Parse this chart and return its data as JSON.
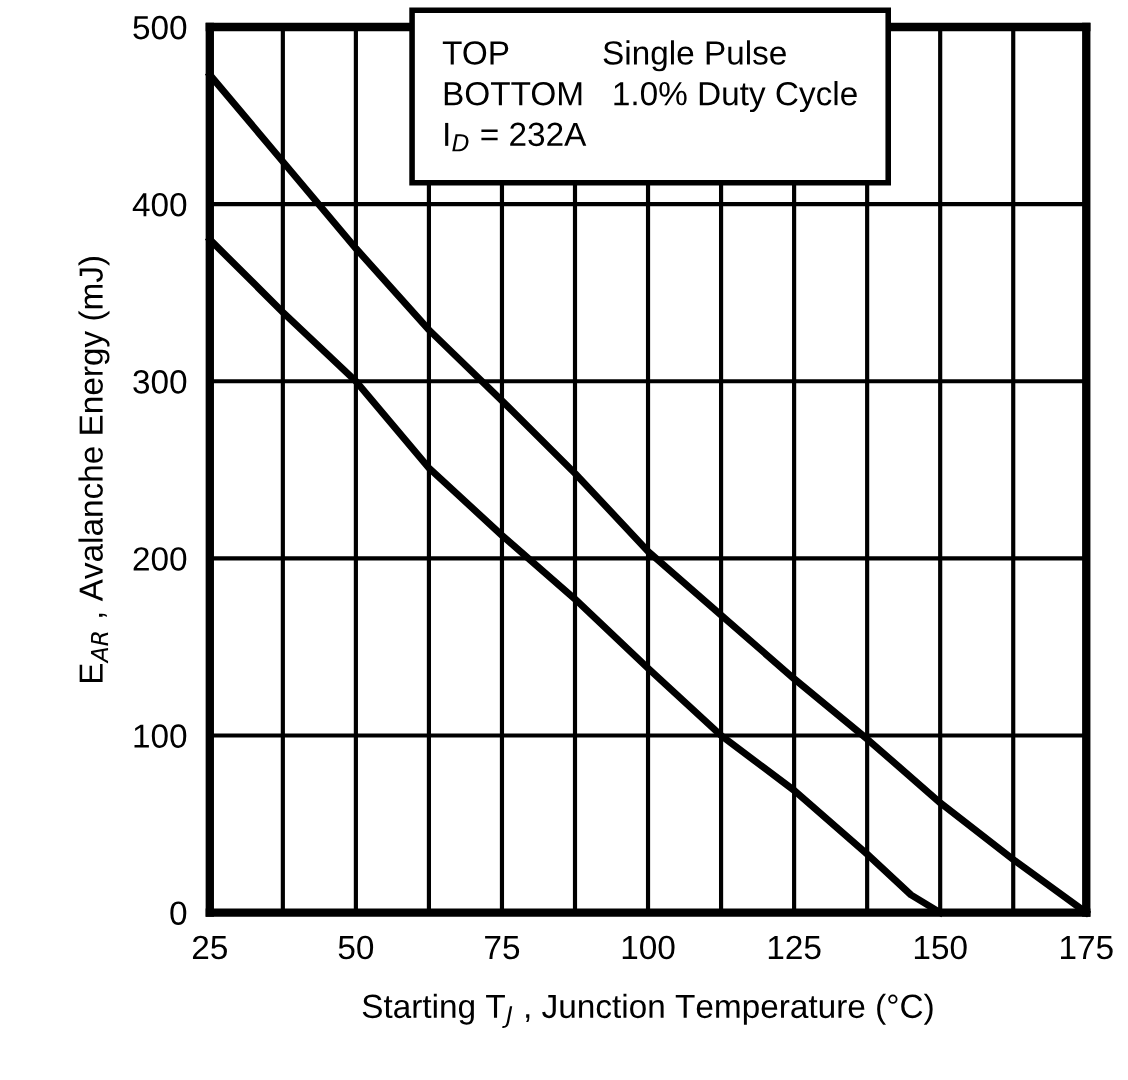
{
  "chart_data": {
    "type": "line",
    "xlabel": "Starting T$_{J}$ , Junction Temperature (°C)",
    "ylabel": "E$_{AR}$ , Avalanche Energy (mJ)",
    "x": [
      25,
      37.5,
      50,
      62.5,
      75,
      87.5,
      100,
      112.5,
      125,
      137.5,
      150,
      162.5,
      175
    ],
    "series": [
      {
        "color": "#000000",
        "values": [
          473,
          424,
          375,
          329,
          289,
          248,
          204,
          168,
          132,
          98,
          62,
          30,
          0
        ]
      },
      {
        "color": "#000000",
        "x": [
          25,
          37.5,
          50,
          62.5,
          75,
          87.5,
          100,
          112.5,
          125,
          137.5,
          145,
          150
        ],
        "values": [
          380,
          339,
          300,
          251,
          213,
          177,
          138,
          100,
          69,
          33,
          10,
          0
        ]
      }
    ],
    "xlim": [
      25,
      175
    ],
    "ylim": [
      0,
      500
    ],
    "xticks": [
      25,
      {
        "value": 37.5,
        "label": null
      },
      50,
      {
        "value": 62.5,
        "label": null
      },
      75,
      {
        "value": 87.5,
        "label": null
      },
      100,
      {
        "value": 112.5,
        "label": null
      },
      125,
      {
        "value": 137.5,
        "label": null
      },
      150,
      {
        "value": 162.5,
        "label": null
      },
      175
    ],
    "yticks": [
      0,
      100,
      200,
      300,
      400,
      500
    ],
    "grid": true,
    "marker": "none",
    "line_style": "solid",
    "annotations": [
      "TOP          Single Pulse\nBOTTOM   1.0% Duty Cycle\nI$_{D}$ = 232A"
    ]
  }
}
